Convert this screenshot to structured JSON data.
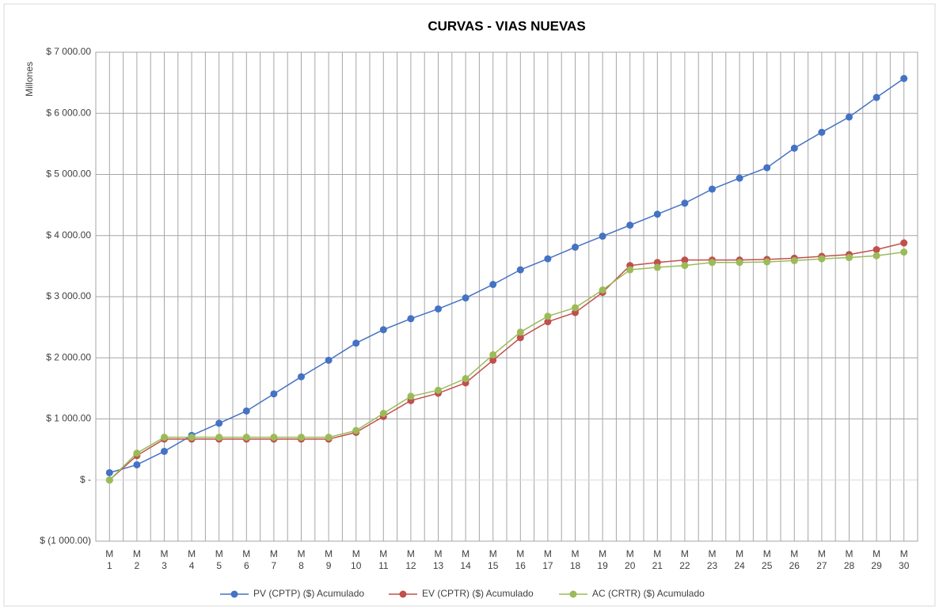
{
  "chart_data": {
    "type": "line",
    "title": "CURVAS - VIAS NUEVAS",
    "y_label": "Millones",
    "categories": [
      "M 1",
      "M 2",
      "M 3",
      "M 4",
      "M 5",
      "M 6",
      "M 7",
      "M 8",
      "M 9",
      "M 10",
      "M 11",
      "M 12",
      "M 13",
      "M 14",
      "M 15",
      "M 16",
      "M 17",
      "M 18",
      "M 19",
      "M 20",
      "M 21",
      "M 22",
      "M 23",
      "M 24",
      "M 25",
      "M 26",
      "M 27",
      "M 28",
      "M 29",
      "M 30"
    ],
    "series": [
      {
        "name": "PV (CPTP) ($) Acumulado",
        "color": "#4472c4",
        "values": [
          120,
          250,
          470,
          730,
          930,
          1130,
          1410,
          1690,
          1960,
          2240,
          2460,
          2640,
          2800,
          2980,
          3200,
          3440,
          3620,
          3810,
          3990,
          4170,
          4350,
          4530,
          4760,
          4940,
          5110,
          5430,
          5690,
          5940,
          6260,
          6570
        ]
      },
      {
        "name": "EV (CPTR) ($) Acumulado",
        "color": "#c0504d",
        "values": [
          0,
          400,
          670,
          670,
          670,
          670,
          670,
          670,
          670,
          780,
          1040,
          1300,
          1420,
          1590,
          1960,
          2330,
          2590,
          2740,
          3070,
          3510,
          3560,
          3600,
          3600,
          3600,
          3610,
          3630,
          3660,
          3690,
          3770,
          3880
        ]
      },
      {
        "name": "AC (CRTR) ($) Acumulado",
        "color": "#9bbb59",
        "values": [
          0,
          440,
          700,
          700,
          700,
          700,
          700,
          700,
          700,
          810,
          1090,
          1370,
          1470,
          1660,
          2050,
          2420,
          2680,
          2820,
          3110,
          3440,
          3480,
          3510,
          3560,
          3560,
          3570,
          3590,
          3620,
          3640,
          3670,
          3730
        ]
      }
    ],
    "ylim": [
      -1000,
      7000
    ],
    "yticks": [
      {
        "value": -1000,
        "label": "$ (1 000.00)"
      },
      {
        "value": 0,
        "label": "$ -"
      },
      {
        "value": 1000,
        "label": "$ 1 000.00"
      },
      {
        "value": 2000,
        "label": "$ 2 000.00"
      },
      {
        "value": 3000,
        "label": "$ 3 000.00"
      },
      {
        "value": 4000,
        "label": "$ 4 000.00"
      },
      {
        "value": 5000,
        "label": "$ 5 000.00"
      },
      {
        "value": 6000,
        "label": "$ 6 000.00"
      },
      {
        "value": 7000,
        "label": "$ 7 000.00"
      }
    ],
    "grid": true,
    "legend": "bottom"
  }
}
